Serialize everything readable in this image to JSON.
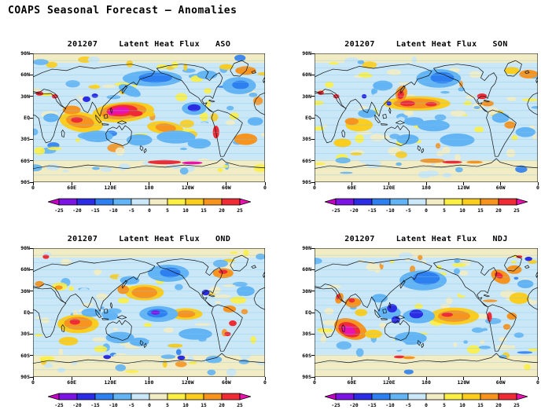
{
  "page_title": "COAPS Seasonal Forecast – Anomalies",
  "chart_data": {
    "type": "heatmap",
    "description": "Four global filled-contour anomaly maps (lat 90N-90S, lon 0-360E) of seasonal forecast latent heat flux anomalies initialized 201207, for target seasons ASO, SON, OND and NDJ. Each map has its own color bar from -25 to 25.",
    "variable": "Latent Heat Flux",
    "initialization": "201207",
    "x_ticks": [
      "0",
      "60E",
      "120E",
      "180",
      "120W",
      "60W",
      "0"
    ],
    "y_ticks": [
      "90N",
      "60N",
      "30N",
      "EQ",
      "30S",
      "60S",
      "90S"
    ],
    "grid": "horizontal latitude lines every 10 degrees, light blue",
    "colorbar": {
      "levels": [
        -25,
        -20,
        -15,
        -10,
        -5,
        0,
        5,
        10,
        15,
        20,
        25
      ],
      "colors": [
        "#C404C4",
        "#7C14E4",
        "#2C2CE4",
        "#2E80F0",
        "#62B4F4",
        "#C9E7F6",
        "#F2ECC4",
        "#FBEF46",
        "#FBCD1E",
        "#F79420",
        "#EF2B36",
        "#EC11AE"
      ],
      "note": "first and last colors are the below/above-range arrow heads"
    },
    "style": {
      "ocean_base_color": "#C9E7F6",
      "polar_band_color": "#F2ECC4",
      "gridline_color": "#85C6E8",
      "coastline_color": "#111111"
    },
    "blob_format": "[lon_0_360_deg, y_deg_from_90N, rx_deg, ry_deg, color_index_into_colorbar_colors, rotate_deg]",
    "panels": [
      {
        "date": "201207",
        "variable": "Latent Heat Flux",
        "season": "ASO",
        "blobs": [
          [
            140,
            82,
            48,
            14,
            8,
            -4
          ],
          [
            140,
            81,
            36,
            11,
            9,
            -4
          ],
          [
            138,
            80,
            24,
            8,
            10,
            -3
          ],
          [
            136,
            80,
            14,
            5,
            11,
            -3
          ],
          [
            160,
            84,
            10,
            4,
            10,
            0
          ],
          [
            75,
            96,
            34,
            14,
            8,
            8
          ],
          [
            73,
            95,
            22,
            9,
            9,
            8
          ],
          [
            68,
            93,
            9,
            4,
            10,
            0
          ],
          [
            60,
            79,
            14,
            6,
            9,
            0
          ],
          [
            205,
            104,
            28,
            9,
            8,
            5
          ],
          [
            206,
            104,
            16,
            6,
            9,
            5
          ],
          [
            330,
            24,
            16,
            6,
            9,
            0
          ],
          [
            300,
            19,
            11,
            4,
            8,
            0
          ],
          [
            330,
            120,
            18,
            8,
            9,
            0
          ],
          [
            284,
            110,
            5,
            9,
            10,
            0
          ],
          [
            204,
            152,
            26,
            3,
            10,
            0
          ],
          [
            247,
            153,
            16,
            2,
            11,
            0
          ],
          [
            10,
            56,
            6,
            3,
            10,
            0
          ],
          [
            34,
            60,
            5,
            3,
            10,
            0
          ],
          [
            122,
            83,
            6,
            4,
            11,
            0
          ],
          [
            185,
            35,
            46,
            11,
            4,
            0
          ],
          [
            190,
            34,
            26,
            7,
            3,
            0
          ],
          [
            150,
            52,
            18,
            7,
            4,
            20
          ],
          [
            320,
            45,
            26,
            12,
            4,
            0
          ],
          [
            322,
            44,
            13,
            6,
            3,
            0
          ],
          [
            250,
            77,
            19,
            9,
            4,
            0
          ],
          [
            250,
            76,
            10,
            5,
            2,
            0
          ],
          [
            83,
            64,
            6,
            4,
            2,
            0
          ],
          [
            96,
            59,
            5,
            3,
            2,
            0
          ],
          [
            100,
            116,
            24,
            8,
            4,
            0
          ],
          [
            165,
            121,
            20,
            8,
            4,
            0
          ],
          [
            222,
            117,
            30,
            9,
            4,
            0
          ],
          [
            258,
            126,
            18,
            7,
            4,
            0
          ],
          [
            345,
            95,
            12,
            6,
            4,
            0
          ],
          [
            270,
            30,
            16,
            6,
            4,
            0
          ],
          [
            28,
            90,
            12,
            6,
            4,
            0
          ]
        ]
      },
      {
        "date": "201207",
        "variable": "Latent Heat Flux",
        "season": "SON",
        "blobs": [
          [
            165,
            70,
            54,
            10,
            8,
            0
          ],
          [
            165,
            70,
            38,
            7,
            9,
            0
          ],
          [
            150,
            70,
            12,
            4,
            10,
            0
          ],
          [
            188,
            71,
            9,
            3,
            10,
            0
          ],
          [
            140,
            56,
            9,
            11,
            9,
            25
          ],
          [
            139,
            58,
            5,
            6,
            10,
            25
          ],
          [
            345,
            29,
            15,
            6,
            9,
            0
          ],
          [
            318,
            24,
            12,
            5,
            8,
            0
          ],
          [
            270,
            60,
            8,
            4,
            10,
            0
          ],
          [
            279,
            70,
            10,
            4,
            9,
            0
          ],
          [
            72,
            100,
            22,
            9,
            8,
            0
          ],
          [
            60,
            95,
            11,
            5,
            9,
            0
          ],
          [
            315,
            100,
            9,
            5,
            9,
            0
          ],
          [
            190,
            150,
            20,
            3,
            9,
            0
          ],
          [
            222,
            152,
            16,
            2,
            10,
            0
          ],
          [
            258,
            152,
            13,
            2,
            9,
            0
          ],
          [
            200,
            35,
            36,
            13,
            4,
            0
          ],
          [
            206,
            34,
            19,
            8,
            3,
            0
          ],
          [
            160,
            95,
            16,
            6,
            4,
            0
          ],
          [
            192,
            101,
            26,
            8,
            4,
            0
          ],
          [
            85,
            84,
            15,
            6,
            4,
            0
          ],
          [
            230,
            121,
            28,
            9,
            4,
            0
          ],
          [
            340,
            110,
            16,
            7,
            4,
            0
          ],
          [
            300,
            90,
            14,
            7,
            4,
            0
          ],
          [
            150,
            120,
            18,
            7,
            4,
            0
          ],
          [
            110,
            45,
            16,
            7,
            4,
            0
          ],
          [
            80,
            60,
            4,
            3,
            2,
            0
          ],
          [
            120,
            70,
            4,
            3,
            2,
            0
          ],
          [
            35,
            60,
            5,
            3,
            10,
            0
          ],
          [
            10,
            55,
            5,
            3,
            10,
            0
          ],
          [
            45,
            125,
            14,
            6,
            8,
            0
          ]
        ]
      },
      {
        "date": "201207",
        "variable": "Latent Heat Flux",
        "season": "OND",
        "blobs": [
          [
            173,
            62,
            30,
            11,
            8,
            0
          ],
          [
            173,
            62,
            20,
            8,
            9,
            0
          ],
          [
            237,
            92,
            26,
            8,
            8,
            0
          ],
          [
            237,
            92,
            15,
            5,
            9,
            0
          ],
          [
            70,
            106,
            32,
            13,
            8,
            0
          ],
          [
            70,
            105,
            22,
            9,
            9,
            0
          ],
          [
            65,
            103,
            8,
            4,
            10,
            0
          ],
          [
            295,
            35,
            16,
            7,
            9,
            0
          ],
          [
            295,
            33,
            7,
            3,
            10,
            0
          ],
          [
            305,
            85,
            10,
            5,
            9,
            0
          ],
          [
            310,
            105,
            6,
            4,
            10,
            0
          ],
          [
            302,
            120,
            5,
            3,
            10,
            0
          ],
          [
            20,
            12,
            5,
            3,
            10,
            0
          ],
          [
            40,
            55,
            6,
            3,
            9,
            0
          ],
          [
            10,
            50,
            7,
            4,
            9,
            0
          ],
          [
            140,
            58,
            9,
            6,
            9,
            0
          ],
          [
            55,
            130,
            15,
            6,
            8,
            0
          ],
          [
            195,
            92,
            30,
            11,
            4,
            0
          ],
          [
            193,
            91,
            16,
            6,
            3,
            0
          ],
          [
            190,
            90,
            7,
            3,
            1,
            0
          ],
          [
            210,
            35,
            32,
            12,
            4,
            0
          ],
          [
            213,
            34,
            16,
            7,
            3,
            0
          ],
          [
            268,
            62,
            6,
            4,
            2,
            0
          ],
          [
            135,
            125,
            22,
            8,
            4,
            0
          ],
          [
            165,
            131,
            15,
            6,
            4,
            0
          ],
          [
            252,
            120,
            26,
            8,
            4,
            0
          ],
          [
            90,
            90,
            15,
            6,
            4,
            0
          ],
          [
            120,
            95,
            12,
            6,
            4,
            0
          ],
          [
            150,
            45,
            15,
            6,
            4,
            0
          ],
          [
            330,
            60,
            14,
            7,
            4,
            0
          ],
          [
            115,
            152,
            6,
            3,
            2,
            0
          ],
          [
            230,
            153,
            6,
            3,
            2,
            0
          ]
        ]
      },
      {
        "date": "201207",
        "variable": "Latent Heat Flux",
        "season": "NDJ",
        "blobs": [
          [
            58,
            113,
            27,
            14,
            9,
            15
          ],
          [
            56,
            114,
            18,
            10,
            10,
            15
          ],
          [
            55,
            115,
            11,
            6,
            11,
            15
          ],
          [
            62,
            76,
            13,
            7,
            9,
            0
          ],
          [
            60,
            73,
            5,
            3,
            10,
            0
          ],
          [
            225,
            95,
            40,
            12,
            8,
            0
          ],
          [
            225,
            95,
            26,
            8,
            9,
            0
          ],
          [
            214,
            93,
            9,
            3,
            10,
            0
          ],
          [
            300,
            40,
            16,
            9,
            9,
            20
          ],
          [
            297,
            38,
            7,
            4,
            10,
            20
          ],
          [
            322,
            30,
            12,
            6,
            9,
            0
          ],
          [
            330,
            70,
            16,
            8,
            8,
            0
          ],
          [
            318,
            95,
            8,
            5,
            9,
            0
          ],
          [
            310,
            110,
            6,
            4,
            9,
            0
          ],
          [
            282,
            96,
            4,
            7,
            10,
            0
          ],
          [
            40,
            70,
            6,
            8,
            9,
            35
          ],
          [
            38,
            68,
            3,
            4,
            10,
            35
          ],
          [
            137,
            152,
            9,
            2,
            10,
            0
          ],
          [
            152,
            153,
            10,
            2,
            9,
            0
          ],
          [
            175,
            45,
            38,
            14,
            4,
            0
          ],
          [
            180,
            42,
            22,
            9,
            3,
            0
          ],
          [
            120,
            90,
            19,
            9,
            4,
            0
          ],
          [
            125,
            84,
            8,
            6,
            2,
            0
          ],
          [
            131,
            100,
            7,
            5,
            2,
            0
          ],
          [
            168,
            95,
            26,
            10,
            4,
            0
          ],
          [
            164,
            92,
            11,
            6,
            2,
            0
          ],
          [
            155,
            126,
            26,
            9,
            4,
            0
          ],
          [
            130,
            136,
            18,
            7,
            5,
            0
          ],
          [
            340,
            50,
            13,
            6,
            4,
            0
          ],
          [
            345,
            15,
            6,
            3,
            2,
            0
          ],
          [
            330,
            12,
            5,
            2,
            10,
            0
          ],
          [
            105,
            70,
            13,
            6,
            4,
            0
          ],
          [
            75,
            90,
            10,
            5,
            8,
            0
          ],
          [
            245,
            60,
            14,
            7,
            5,
            0
          ],
          [
            95,
            120,
            14,
            6,
            8,
            0
          ]
        ]
      }
    ]
  }
}
